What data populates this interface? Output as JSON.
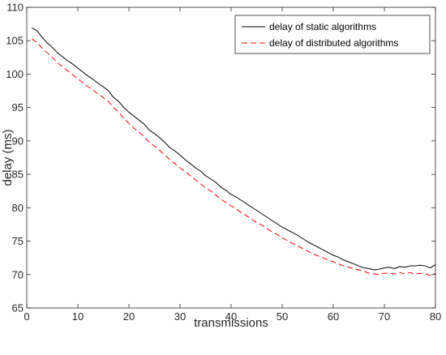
{
  "chart_data": {
    "type": "line",
    "xlabel": "transmissions",
    "ylabel": "delay (ms)",
    "xlim": [
      0,
      80
    ],
    "ylim": [
      65,
      110
    ],
    "xticks": [
      0,
      10,
      20,
      30,
      40,
      50,
      60,
      70,
      80
    ],
    "yticks": [
      65,
      70,
      75,
      80,
      85,
      90,
      95,
      100,
      105,
      110
    ],
    "grid": false,
    "legend_position": "top-right",
    "series": [
      {
        "name": "delay of static algorithms",
        "color": "#000000",
        "dash": "solid",
        "x": [
          1,
          2,
          3,
          4,
          5,
          6,
          7,
          8,
          9,
          10,
          11,
          12,
          13,
          14,
          15,
          16,
          17,
          18,
          19,
          20,
          21,
          22,
          23,
          24,
          25,
          26,
          27,
          28,
          29,
          30,
          31,
          32,
          33,
          34,
          35,
          36,
          37,
          38,
          39,
          40,
          41,
          42,
          43,
          44,
          45,
          46,
          47,
          48,
          49,
          50,
          51,
          52,
          53,
          54,
          55,
          56,
          57,
          58,
          59,
          60,
          61,
          62,
          63,
          64,
          65,
          66,
          67,
          68,
          69,
          70,
          71,
          72,
          73,
          74,
          75,
          76,
          77,
          78,
          79,
          80
        ],
        "values": [
          106.9,
          106.5,
          105.5,
          104.7,
          104.0,
          103.2,
          102.6,
          102.0,
          101.5,
          100.9,
          100.3,
          99.7,
          99.2,
          98.6,
          98.1,
          97.5,
          96.5,
          95.9,
          95.0,
          94.3,
          93.7,
          93.1,
          92.5,
          91.6,
          91.1,
          90.5,
          89.8,
          89.0,
          88.5,
          87.9,
          87.2,
          86.6,
          86.0,
          85.5,
          84.8,
          84.3,
          83.8,
          83.1,
          82.6,
          82.0,
          81.6,
          81.1,
          80.6,
          80.1,
          79.6,
          79.1,
          78.6,
          78.1,
          77.6,
          77.1,
          76.7,
          76.3,
          75.9,
          75.4,
          74.9,
          74.5,
          74.1,
          73.7,
          73.3,
          72.9,
          72.6,
          72.2,
          71.9,
          71.6,
          71.3,
          71.0,
          70.9,
          70.7,
          70.8,
          71.0,
          71.1,
          70.9,
          71.2,
          71.1,
          71.3,
          71.3,
          71.4,
          71.3,
          71.0,
          71.5
        ]
      },
      {
        "name": "delay of distributed algorithms",
        "color": "#ff0000",
        "dash": "dashed",
        "x": [
          1,
          2,
          3,
          4,
          5,
          6,
          7,
          8,
          9,
          10,
          11,
          12,
          13,
          14,
          15,
          16,
          17,
          18,
          19,
          20,
          21,
          22,
          23,
          24,
          25,
          26,
          27,
          28,
          29,
          30,
          31,
          32,
          33,
          34,
          35,
          36,
          37,
          38,
          39,
          40,
          41,
          42,
          43,
          44,
          45,
          46,
          47,
          48,
          49,
          50,
          51,
          52,
          53,
          54,
          55,
          56,
          57,
          58,
          59,
          60,
          61,
          62,
          63,
          64,
          65,
          66,
          67,
          68,
          69,
          70,
          71,
          72,
          73,
          74,
          75,
          76,
          77,
          78,
          79,
          80
        ],
        "values": [
          105.3,
          104.7,
          103.9,
          103.2,
          102.5,
          101.7,
          101.1,
          100.5,
          99.9,
          99.3,
          98.7,
          98.1,
          97.6,
          97.0,
          96.5,
          95.9,
          95.0,
          94.3,
          93.4,
          92.6,
          91.9,
          91.3,
          90.6,
          89.8,
          89.2,
          88.6,
          87.9,
          87.2,
          86.6,
          86.0,
          85.4,
          84.8,
          84.2,
          83.6,
          83.0,
          82.5,
          81.9,
          81.3,
          80.8,
          80.3,
          79.8,
          79.3,
          78.8,
          78.3,
          77.8,
          77.4,
          76.9,
          76.4,
          76.0,
          75.5,
          75.1,
          74.7,
          74.3,
          73.9,
          73.5,
          73.1,
          72.8,
          72.5,
          72.2,
          71.9,
          71.6,
          71.3,
          71.1,
          70.9,
          70.7,
          70.5,
          70.2,
          70.1,
          70.0,
          70.2,
          70.2,
          70.1,
          70.3,
          70.1,
          70.3,
          70.1,
          70.2,
          70.1,
          69.9,
          70.2
        ]
      }
    ]
  }
}
